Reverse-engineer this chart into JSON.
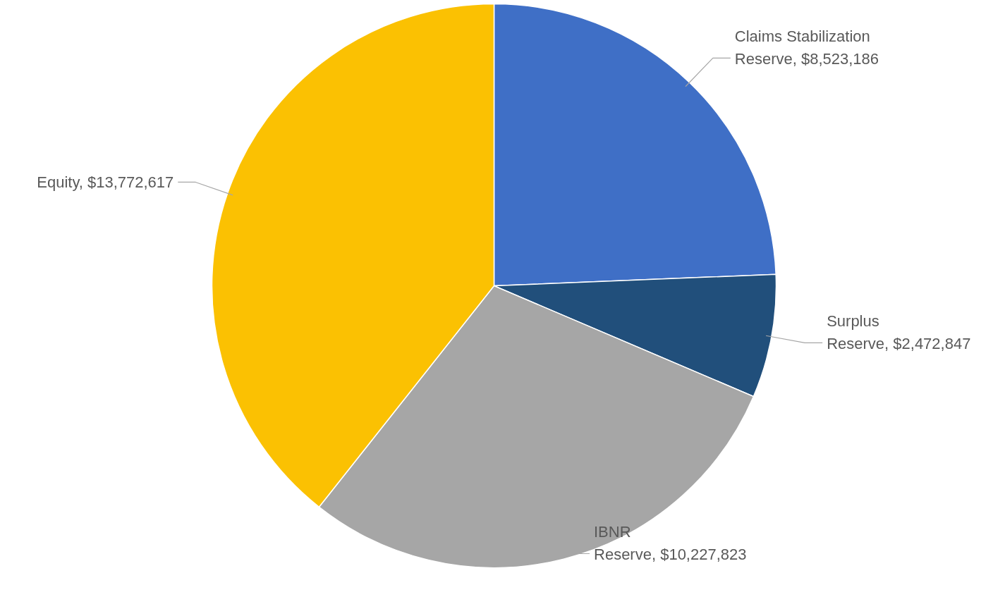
{
  "chart_data": {
    "type": "pie",
    "categories": [
      "Claims Stabilization Reserve",
      "Surplus Reserve",
      "IBNR Reserve",
      "Equity"
    ],
    "values": [
      8523186,
      2472847,
      10227823,
      13772617
    ],
    "colors": [
      "#3f6fc6",
      "#214f7b",
      "#a6a6a6",
      "#fbc102"
    ],
    "value_labels": [
      "$8,523,186",
      "$2,472,847",
      "$10,227,823",
      "$13,772,617"
    ]
  }
}
